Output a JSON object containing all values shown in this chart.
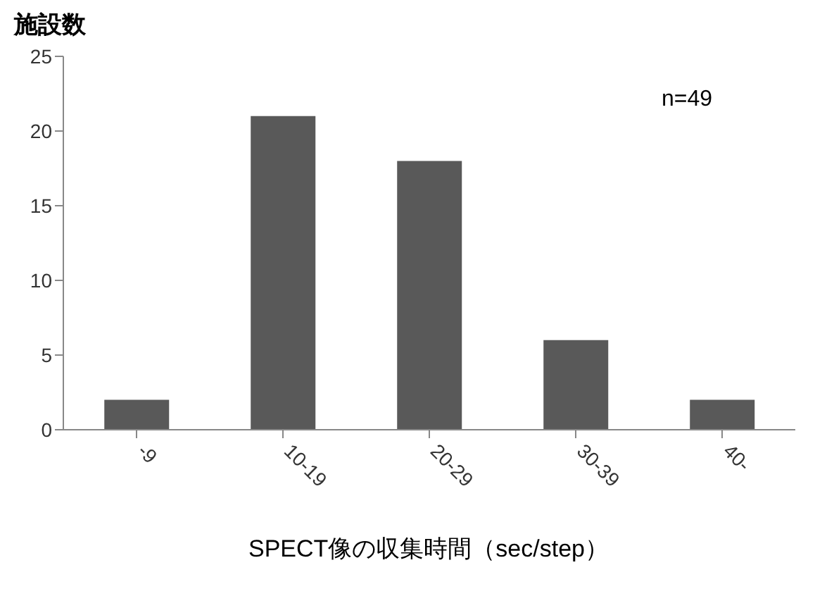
{
  "chart_data": {
    "type": "bar",
    "ylabel": "施設数",
    "xlabel": "SPECT像の収集時間（sec/step）",
    "annotations": [
      "n=49"
    ],
    "categories": [
      "-9",
      "10-19",
      "20-29",
      "30-39",
      "40-"
    ],
    "values": [
      2,
      21,
      18,
      6,
      2
    ],
    "color": "#595959",
    "ylim": [
      0,
      25
    ],
    "yticks": [
      0,
      5,
      10,
      15,
      20,
      25
    ],
    "grid": false
  }
}
